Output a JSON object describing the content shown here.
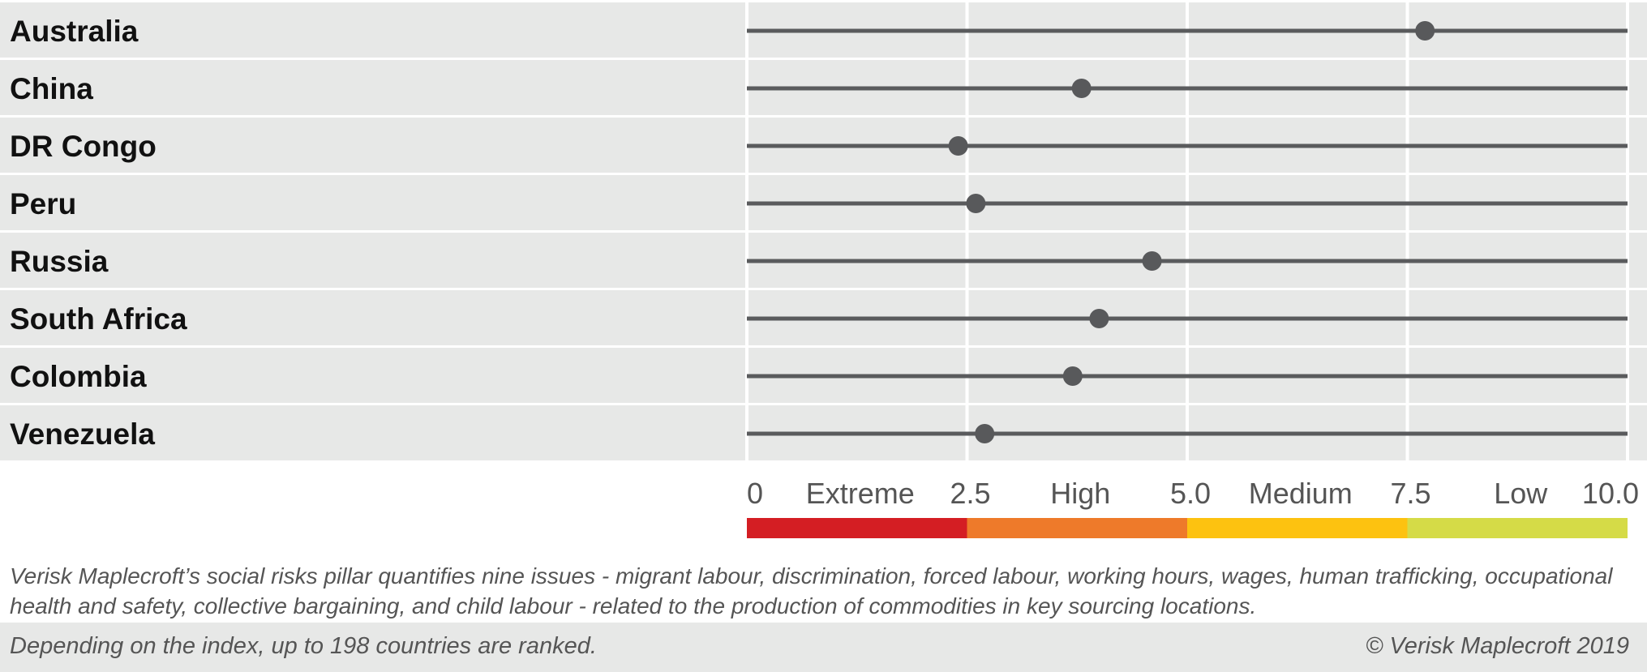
{
  "chart_data": {
    "type": "scatter",
    "orientation": "horizontal-dot-plot",
    "categories": [
      "Australia",
      "China",
      "DR Congo",
      "Peru",
      "Russia",
      "South Africa",
      "Colombia",
      "Venezuela"
    ],
    "values": [
      7.7,
      3.8,
      2.4,
      2.6,
      4.6,
      4.0,
      3.7,
      2.7
    ],
    "xlim": [
      0,
      10
    ],
    "xticks": [
      "0",
      "2.5",
      "5.0",
      "7.5",
      "10.0"
    ],
    "bands": [
      {
        "label": "Extreme",
        "from": 0,
        "to": 2.5,
        "color": "#d41e23"
      },
      {
        "label": "High",
        "from": 2.5,
        "to": 5.0,
        "color": "#ee7a2a"
      },
      {
        "label": "Medium",
        "from": 5.0,
        "to": 7.5,
        "color": "#fdc210"
      },
      {
        "label": "Low",
        "from": 7.5,
        "to": 10.0,
        "color": "#d5db47"
      }
    ],
    "grid": true,
    "title": "",
    "xlabel": "",
    "ylabel": ""
  },
  "note": "Verisk Maplecroft’s social risks pillar quantifies nine issues - migrant labour, discrimination, forced labour, working hours, wages, human trafficking, occupational health and safety, collective bargaining, and child labour - related to the production of commodities in key sourcing locations.",
  "footer": {
    "left": "Depending on the index, up to 198 countries are ranked.",
    "right": "© Verisk Maplecroft 2019"
  },
  "colors": {
    "row_bg": "#e7e8e7",
    "line": "#5a5b5d",
    "dot": "#58595b",
    "grid": "#ffffff"
  }
}
